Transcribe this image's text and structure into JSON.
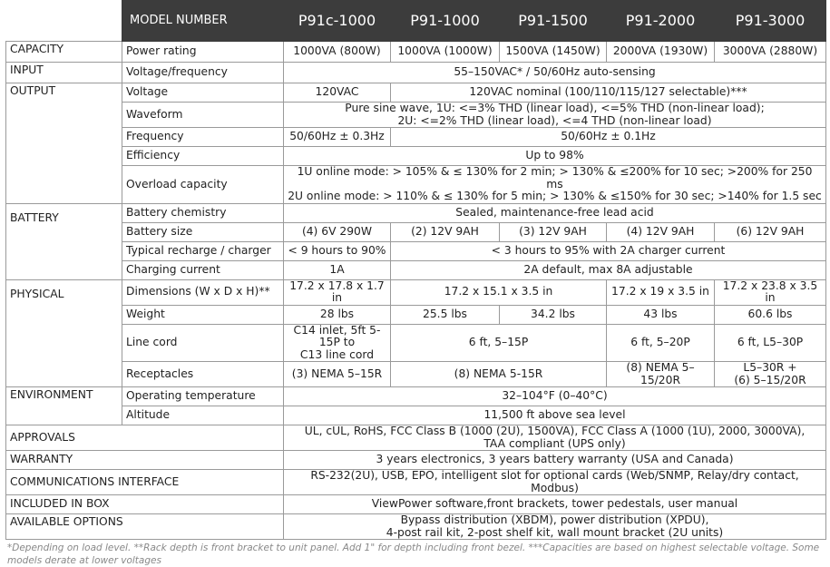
{
  "header": {
    "model_number": "MODEL NUMBER",
    "models": [
      "P91c-1000",
      "P91-1000",
      "P91-1500",
      "P91-2000",
      "P91-3000"
    ]
  },
  "sections": [
    {
      "title": "CAPACITY",
      "rows": [
        {
          "label": "Power rating",
          "cells": [
            "1000VA (800W)",
            "1000VA (1000W)",
            "1500VA (1450W)",
            "2000VA (1930W)",
            "3000VA (2880W)"
          ]
        }
      ]
    },
    {
      "title": "INPUT",
      "rows": [
        {
          "label": "Voltage/frequency",
          "cells": [
            "55–150VAC* /  50/60Hz auto-sensing"
          ]
        }
      ]
    },
    {
      "title": "OUTPUT",
      "rows": [
        {
          "label": "Voltage",
          "cells": [
            "120VAC",
            "120VAC nominal (100/110/115/127 selectable)***"
          ]
        },
        {
          "label": "Waveform",
          "cells": [
            "Pure sine wave, 1U: <=3% THD (linear load), <=5% THD (non-linear load);\n2U: <=2% THD (linear load), <=4 THD (non-linear load)"
          ]
        },
        {
          "label": "Frequency",
          "cells": [
            "50/60Hz ± 0.3Hz",
            "50/60Hz ± 0.1Hz"
          ]
        },
        {
          "label": "Efficiency",
          "cells": [
            "Up to 98%"
          ]
        },
        {
          "label": "Overload capacity",
          "cells": [
            "1U online mode: > 105% & ≤ 130% for 2 min; > 130% & ≤200% for 10 sec; >200% for 250 ms\n2U online mode: > 110% & ≤ 130% for 5 min; > 130% & ≤150% for 30 sec; >140% for 1.5 sec"
          ]
        }
      ]
    },
    {
      "title": "BATTERY",
      "rows": [
        {
          "label": "Battery chemistry",
          "cells": [
            "Sealed, maintenance-free lead acid"
          ]
        },
        {
          "label": "Battery  size",
          "cells": [
            "(4) 6V 290W",
            "(2) 12V 9AH",
            "(3) 12V 9AH",
            "(4) 12V 9AH",
            "(6) 12V 9AH"
          ]
        },
        {
          "label": "Typical recharge / charger",
          "cells": [
            "< 9 hours to 90%",
            "< 3 hours to 95% with 2A charger current"
          ]
        },
        {
          "label": "Charging current",
          "cells": [
            "1A",
            "2A default,  max 8A adjustable"
          ]
        }
      ]
    },
    {
      "title": "PHYSICAL",
      "rows": [
        {
          "label": "Dimensions (W x D x H)**",
          "cells": [
            "17.2 x 17.8 x 1.7 in",
            "17.2 x 15.1 x 3.5 in",
            "17.2 x 19 x 3.5 in",
            "17.2 x 23.8 x 3.5 in"
          ]
        },
        {
          "label": "Weight",
          "cells": [
            "28 lbs",
            "25.5 lbs",
            "34.2 lbs",
            "43 lbs",
            "60.6 lbs"
          ]
        },
        {
          "label": "Line cord",
          "cells": [
            "C14 inlet, 5ft 5-15P to\nC13 line cord",
            "6 ft, 5–15P",
            "6 ft, 5–20P",
            "6 ft, L5–30P"
          ]
        },
        {
          "label": "Receptacles",
          "cells": [
            "(3) NEMA 5–15R",
            "(8) NEMA 5-15R",
            "(8) NEMA 5–15/20R",
            "L5–30R +\n(6) 5–15/20R"
          ]
        }
      ]
    },
    {
      "title": "ENVIRONMENT",
      "rows": [
        {
          "label": "Operating temperature",
          "cells": [
            "32–104°F (0–40°C)"
          ]
        },
        {
          "label": "Altitude",
          "cells": [
            "11,500 ft above sea level"
          ]
        }
      ]
    }
  ],
  "general": [
    {
      "label": "APPROVALS",
      "value": "UL, cUL, RoHS, FCC Class B (1000 (2U), 1500VA), FCC Class A (1000 (1U), 2000, 3000VA),\nTAA compliant (UPS only)"
    },
    {
      "label": "WARRANTY",
      "value": "3 years electronics, 3 years battery warranty (USA and Canada)"
    },
    {
      "label": "COMMUNICATIONS INTERFACE",
      "value": "RS-232(2U), USB, EPO, intelligent slot for optional cards (Web/SNMP, Relay/dry contact, Modbus)"
    },
    {
      "label": "INCLUDED IN BOX",
      "value": "ViewPower software,front brackets, tower pedestals, user manual"
    },
    {
      "label": "AVAILABLE OPTIONS",
      "value": "Bypass distribution (XBDM), power distribution (XPDU),\n4-post rail kit, 2-post shelf kit, wall mount bracket (2U units)"
    }
  ],
  "footnote": "*Depending on load level. **Rack depth is front bracket to unit panel. Add 1\" for depth including front bezel. ***Capacities are based on highest selectable voltage. Some models derate at lower voltages"
}
